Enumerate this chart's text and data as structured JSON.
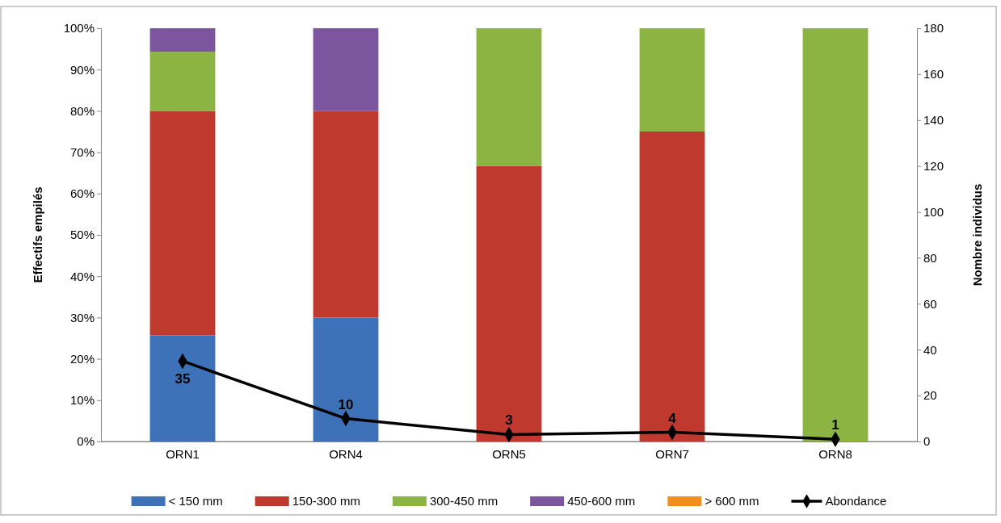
{
  "chart_data": {
    "type": "bar",
    "stacked": true,
    "categories": [
      "ORN1",
      "ORN4",
      "ORN5",
      "ORN7",
      "ORN8"
    ],
    "ylabel": "Effectifs empilés",
    "y2label": "Nombre individus",
    "ylim": [
      0,
      100
    ],
    "yticks": [
      {
        "value": 0,
        "label": "0%"
      },
      {
        "value": 10,
        "label": "10%"
      },
      {
        "value": 20,
        "label": "20%"
      },
      {
        "value": 30,
        "label": "30%"
      },
      {
        "value": 40,
        "label": "40%"
      },
      {
        "value": 50,
        "label": "50%"
      },
      {
        "value": 60,
        "label": "60%"
      },
      {
        "value": 70,
        "label": "70%"
      },
      {
        "value": 80,
        "label": "80%"
      },
      {
        "value": 90,
        "label": "90%"
      },
      {
        "value": 100,
        "label": "100%"
      }
    ],
    "y2lim": [
      0,
      180
    ],
    "y2ticks": [
      0,
      20,
      40,
      60,
      80,
      100,
      120,
      140,
      160,
      180
    ],
    "legend": "bottom",
    "grid": false,
    "series": [
      {
        "name": "< 150 mm",
        "color": "#3d72b8",
        "values": [
          25.7,
          30,
          0,
          0,
          0
        ]
      },
      {
        "name": "150-300 mm",
        "color": "#c0392f",
        "values": [
          54.3,
          50,
          66.7,
          75,
          0
        ]
      },
      {
        "name": "300-450 mm",
        "color": "#8bb443",
        "values": [
          14.3,
          0,
          33.3,
          25,
          100
        ]
      },
      {
        "name": "450-600 mm",
        "color": "#7b559e",
        "values": [
          5.7,
          20,
          0,
          0,
          0
        ]
      },
      {
        "name": "> 600 mm",
        "color": "#f28f1c",
        "values": [
          0,
          0,
          0,
          0,
          0
        ]
      },
      {
        "name": "Abondance",
        "type": "line",
        "axis": "y2",
        "color": "#000000",
        "marker": "diamond",
        "line_style": "solid",
        "values": [
          35,
          10,
          3,
          4,
          1
        ],
        "value_labels": [
          "35",
          "10",
          "3",
          "4",
          "1"
        ]
      }
    ]
  }
}
